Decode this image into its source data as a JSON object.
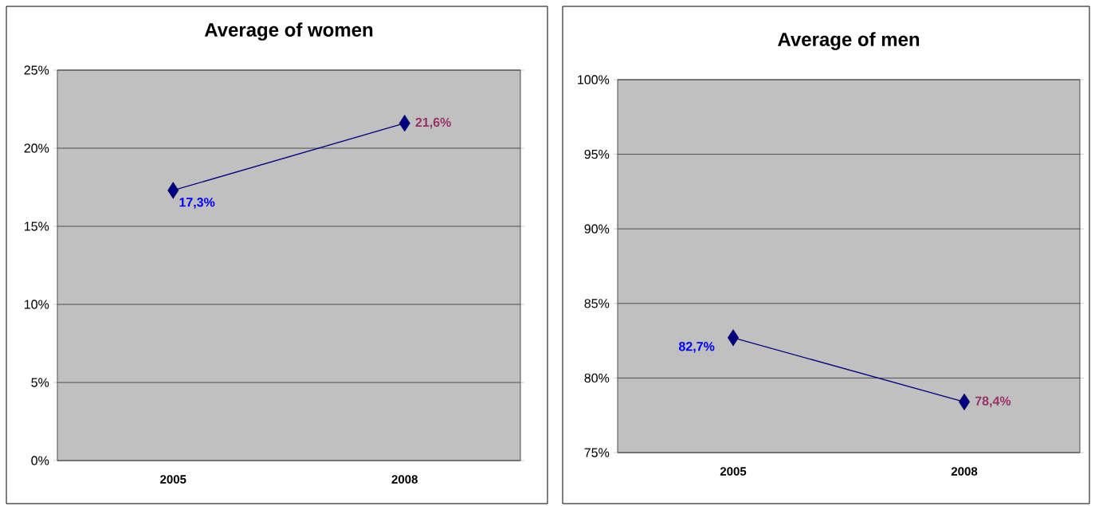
{
  "chart_data": [
    {
      "type": "line",
      "title": "Average of women",
      "categories": [
        "2005",
        "2008"
      ],
      "values": [
        17.3,
        21.6
      ],
      "value_labels": [
        "17,3%",
        "21,6%"
      ],
      "color": "#000080",
      "marker": "diamond",
      "grid": "y",
      "ylim": [
        0,
        25
      ],
      "yticks": [
        {
          "value": 0,
          "label": "0%"
        },
        {
          "value": 5,
          "label": "5%"
        },
        {
          "value": 10,
          "label": "10%"
        },
        {
          "value": 15,
          "label": "15%"
        },
        {
          "value": 20,
          "label": "20%"
        },
        {
          "value": 25,
          "label": "25%"
        }
      ]
    },
    {
      "type": "line",
      "title": "Average of men",
      "categories": [
        "2005",
        "2008"
      ],
      "values": [
        82.7,
        78.4
      ],
      "value_labels": [
        "82,7%",
        "78,4%"
      ],
      "color": "#000080",
      "marker": "diamond",
      "grid": "y",
      "ylim": [
        75,
        100
      ],
      "yticks": [
        {
          "value": 75,
          "label": "75%"
        },
        {
          "value": 80,
          "label": "80%"
        },
        {
          "value": 85,
          "label": "85%"
        },
        {
          "value": 90,
          "label": "90%"
        },
        {
          "value": 95,
          "label": "95%"
        },
        {
          "value": 100,
          "label": "100%"
        }
      ]
    }
  ]
}
